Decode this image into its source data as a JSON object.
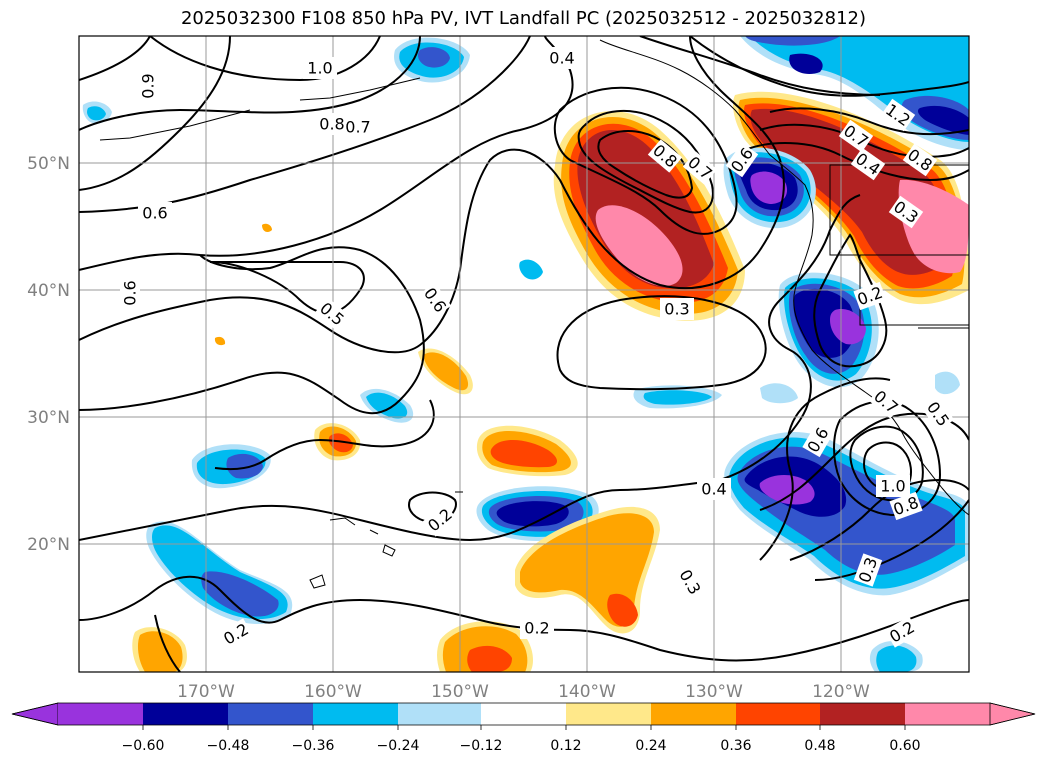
{
  "title": "2025032300 F108 850 hPa PV, IVT Landfall PC (2025032512 - 2025032812)",
  "map": {
    "lat_labels": [
      "50°N",
      "40°N",
      "30°N",
      "20°N"
    ],
    "lon_labels": [
      "170°W",
      "160°W",
      "150°W",
      "140°W",
      "130°W",
      "120°W"
    ],
    "contour_labels": [
      "1.0",
      "0.8",
      "0.7",
      "0.6",
      "0.9",
      "0.4",
      "0.8",
      "0.7",
      "1.2",
      "0.8",
      "0.4",
      "0.3",
      "0.7",
      "0.6",
      "0.5",
      "0.6",
      "0.3",
      "0.2",
      "0.7",
      "0.5",
      "0.6",
      "0.4",
      "1.0",
      "0.8",
      "0.3",
      "0.2",
      "0.3",
      "0.2",
      "0.2",
      "0.2",
      "0.6"
    ]
  },
  "colorbar": {
    "labels": [
      "−0.60",
      "−0.48",
      "−0.36",
      "−0.24",
      "−0.12",
      "0.12",
      "0.24",
      "0.36",
      "0.48",
      "0.60"
    ],
    "colors": [
      "#9933dd",
      "#000099",
      "#3355cc",
      "#00bbf0",
      "#b0e0f8",
      "#ffffff",
      "#ffe88a",
      "#ffa500",
      "#ff4400",
      "#b22222",
      "#ff88aa"
    ]
  },
  "colors": {
    "pink": "#ff88aa",
    "dark_red": "#b22222",
    "red_orange": "#ff4400",
    "orange": "#ffa500",
    "light_yellow": "#ffe88a",
    "light_blue": "#b0e0f8",
    "cyan": "#00bbf0",
    "mid_blue": "#3355cc",
    "navy": "#000099",
    "purple": "#9933dd"
  }
}
